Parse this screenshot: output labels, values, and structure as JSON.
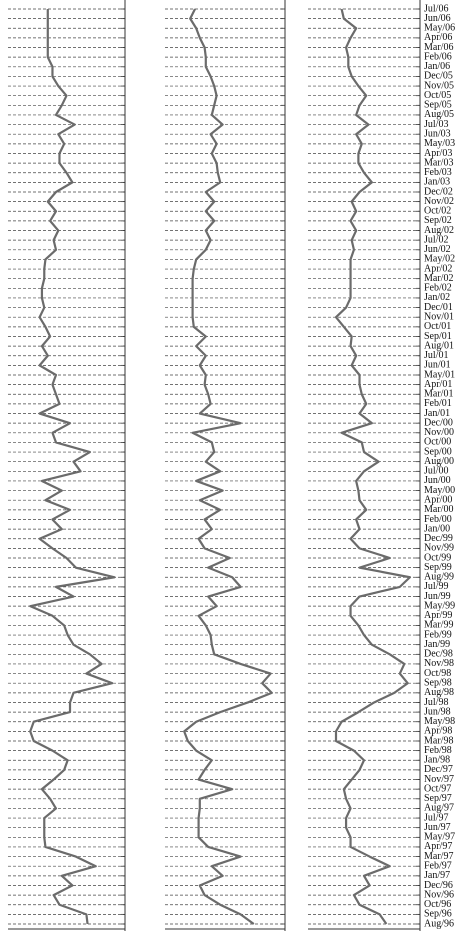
{
  "chart_data": {
    "type": "line",
    "orientation": "horizontal",
    "grid": true,
    "xlim": [
      0,
      10
    ],
    "categories": [
      "Jul/06",
      "Jun/06",
      "May/06",
      "Apr/06",
      "Mar/06",
      "Feb/06",
      "Jan/06",
      "Dec/05",
      "Nov/05",
      "Oct/05",
      "Sep/05",
      "Aug/05",
      "Jul/03",
      "Jun/03",
      "May/03",
      "Apr/03",
      "Mar/03",
      "Feb/03",
      "Jan/03",
      "Dec/02",
      "Nov/02",
      "Oct/02",
      "Sep/02",
      "Aug/02",
      "Jul/02",
      "Jun/02",
      "May/02",
      "Apr/02",
      "Mar/02",
      "Feb/02",
      "Jan/02",
      "Dec/01",
      "Nov/01",
      "Oct/01",
      "Sep/01",
      "Aug/01",
      "Jul/01",
      "Jun/01",
      "May/01",
      "Apr/01",
      "Mar/01",
      "Feb/01",
      "Jan/01",
      "Dec/00",
      "Nov/00",
      "Oct/00",
      "Sep/00",
      "Aug/00",
      "Jul/00",
      "Jun/00",
      "May/00",
      "Apr/00",
      "Mar/00",
      "Feb/00",
      "Jan/00",
      "Dec/99",
      "Nov/99",
      "Oct/99",
      "Sep/99",
      "Aug/99",
      "Jul/99",
      "Jun/99",
      "May/99",
      "Apr/99",
      "Mar/99",
      "Feb/99",
      "Jan/99",
      "Dec/98",
      "Nov/98",
      "Oct/98",
      "Sep/98",
      "Aug/98",
      "Jul/98",
      "Jun/98",
      "May/98",
      "Apr/98",
      "Mar/98",
      "Feb/98",
      "Jan/98",
      "Dec/97",
      "Nov/97",
      "Oct/97",
      "Sep/97",
      "Aug/97",
      "Jul/97",
      "Jun/97",
      "May/97",
      "Apr/97",
      "Mar/97",
      "Feb/97",
      "Jan/97",
      "Dec/96",
      "Nov/96",
      "Oct/96",
      "Sep/96",
      "Aug/96"
    ],
    "series": [
      {
        "color": "#6b6b6b",
        "values": [
          3.4,
          3.4,
          3.4,
          3.4,
          3.4,
          3.4,
          3.8,
          3.8,
          4.3,
          5.0,
          4.6,
          4.1,
          5.7,
          4.3,
          4.8,
          4.4,
          4.4,
          5.0,
          5.5,
          4.1,
          3.4,
          4.1,
          3.6,
          4.3,
          3.9,
          4.1,
          3.2,
          3.1,
          3.1,
          2.9,
          2.9,
          3.1,
          2.7,
          3.2,
          3.6,
          2.9,
          3.4,
          2.7,
          4.1,
          3.8,
          4.1,
          4.4,
          2.7,
          5.3,
          3.8,
          4.1,
          7.0,
          5.6,
          6.2,
          2.9,
          4.6,
          3.2,
          5.3,
          3.8,
          4.6,
          2.7,
          3.8,
          5.0,
          5.8,
          9.1,
          4.1,
          5.6,
          1.9,
          3.8,
          4.8,
          5.1,
          5.6,
          7.0,
          8.0,
          6.7,
          8.9,
          5.6,
          5.3,
          5.3,
          2.2,
          1.9,
          2.2,
          3.8,
          5.1,
          4.8,
          3.9,
          2.9,
          3.6,
          4.1,
          3.1,
          3.1,
          3.1,
          3.2,
          5.8,
          7.5,
          4.6,
          5.5,
          3.9,
          4.4,
          6.7,
          6.8
        ]
      },
      {
        "color": "#6b6b6b",
        "values": [
          2.5,
          2.1,
          2.6,
          2.9,
          3.3,
          3.4,
          3.4,
          3.8,
          4.1,
          4.3,
          4.1,
          3.9,
          4.8,
          3.8,
          4.3,
          3.9,
          4.3,
          4.4,
          4.6,
          3.4,
          4.1,
          3.4,
          4.1,
          3.4,
          3.8,
          3.4,
          2.6,
          2.4,
          2.3,
          2.3,
          2.3,
          2.3,
          2.3,
          2.4,
          3.4,
          2.6,
          3.4,
          2.9,
          3.4,
          3.3,
          3.6,
          3.8,
          2.9,
          6.3,
          2.3,
          3.9,
          4.1,
          3.4,
          4.6,
          2.6,
          4.8,
          2.9,
          4.6,
          3.3,
          3.9,
          2.8,
          3.3,
          5.4,
          3.6,
          5.6,
          6.3,
          3.6,
          4.3,
          2.8,
          3.4,
          3.8,
          3.9,
          4.1,
          6.3,
          8.8,
          8.1,
          8.9,
          6.9,
          4.6,
          2.6,
          1.6,
          1.9,
          2.6,
          3.9,
          3.3,
          2.8,
          5.6,
          2.9,
          2.9,
          2.8,
          2.8,
          2.8,
          3.6,
          6.3,
          3.9,
          4.8,
          2.9,
          3.3,
          4.6,
          6.3,
          7.4
        ]
      },
      {
        "color": "#6b6b6b",
        "values": [
          3.0,
          3.2,
          4.3,
          3.8,
          3.4,
          3.6,
          3.6,
          3.9,
          4.5,
          5.2,
          4.6,
          4.3,
          5.4,
          4.3,
          4.8,
          4.5,
          4.5,
          5.0,
          5.7,
          4.6,
          3.9,
          4.3,
          3.8,
          4.3,
          3.9,
          4.1,
          3.8,
          3.8,
          3.8,
          3.8,
          3.8,
          3.4,
          2.5,
          3.2,
          3.9,
          3.8,
          4.3,
          3.9,
          4.6,
          4.6,
          4.8,
          5.2,
          4.6,
          5.7,
          3.0,
          4.8,
          5.0,
          6.3,
          5.0,
          4.3,
          4.5,
          4.6,
          5.2,
          4.3,
          4.6,
          3.8,
          4.6,
          7.3,
          4.6,
          9.1,
          8.2,
          4.6,
          3.8,
          3.8,
          4.5,
          5.0,
          5.7,
          7.3,
          8.6,
          8.2,
          8.9,
          7.7,
          5.9,
          4.5,
          3.0,
          2.5,
          2.5,
          4.1,
          5.0,
          4.6,
          3.9,
          3.2,
          3.4,
          3.8,
          3.4,
          3.4,
          3.8,
          3.8,
          5.5,
          7.3,
          5.0,
          5.5,
          4.1,
          4.6,
          6.4,
          7.0
        ]
      }
    ]
  }
}
